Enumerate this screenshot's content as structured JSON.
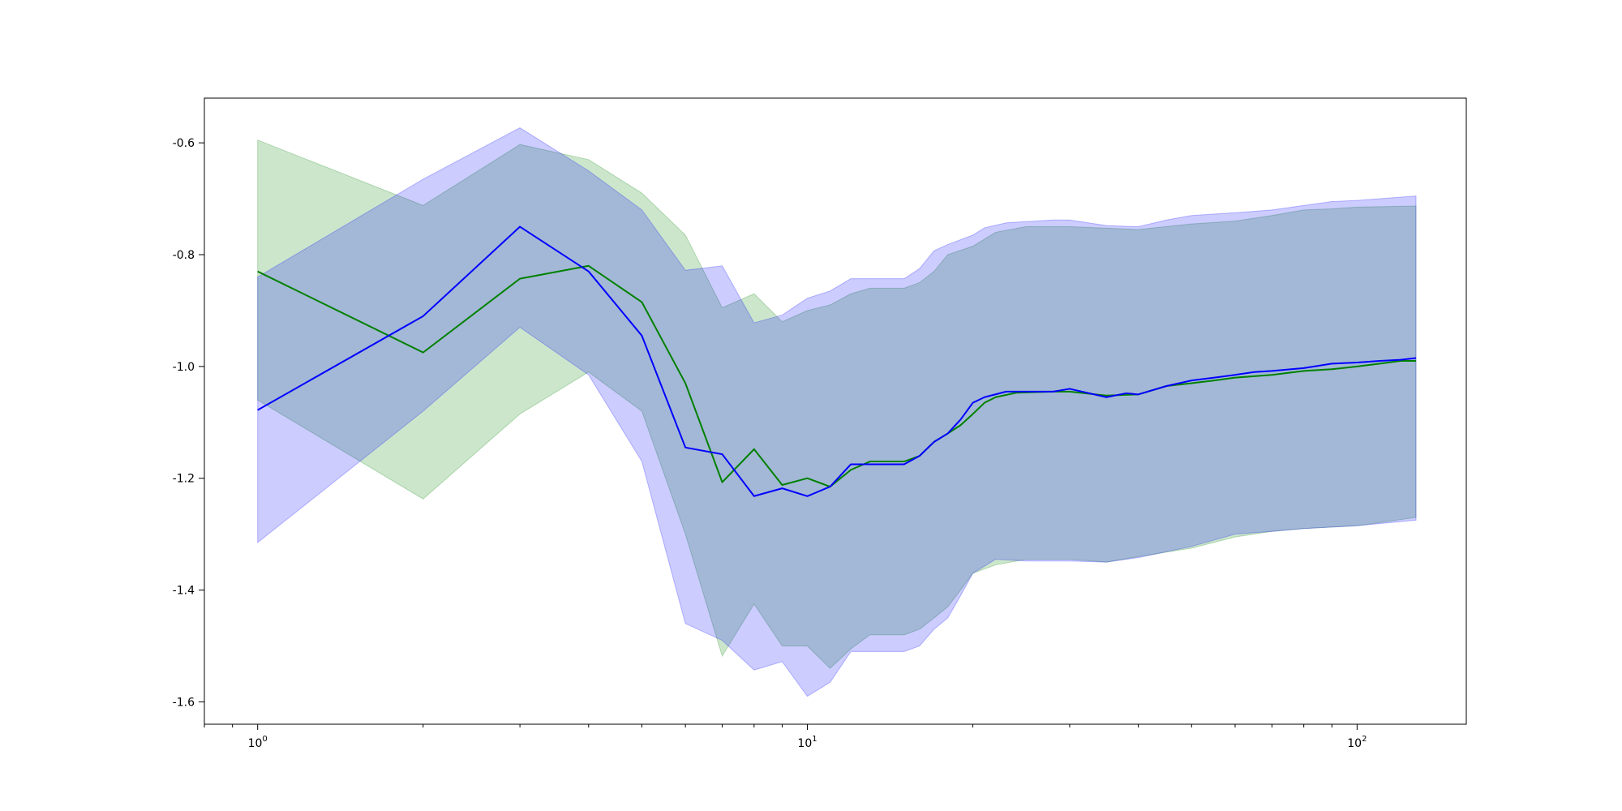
{
  "chart_data": {
    "type": "line",
    "title": "",
    "xlabel": "",
    "ylabel": "",
    "x_scale": "log",
    "xlim": [
      0.8,
      158
    ],
    "ylim": [
      -1.64,
      -0.52
    ],
    "grid": false,
    "x_major_ticks": [
      {
        "value": 1,
        "base": "10",
        "exp": "0"
      },
      {
        "value": 10,
        "base": "10",
        "exp": "1"
      },
      {
        "value": 100,
        "base": "10",
        "exp": "2"
      }
    ],
    "y_ticks": [
      {
        "value": -0.6,
        "label": "-0.6"
      },
      {
        "value": -0.8,
        "label": "-0.8"
      },
      {
        "value": -1.0,
        "label": "-1.0"
      },
      {
        "value": -1.2,
        "label": "-1.2"
      },
      {
        "value": -1.4,
        "label": "-1.4"
      },
      {
        "value": -1.6,
        "label": "-1.6"
      }
    ],
    "series": [
      {
        "color": "#008000",
        "band_color": "#008000",
        "points": [
          [
            1,
            -0.83
          ],
          [
            2,
            -0.975
          ],
          [
            3,
            -0.843
          ],
          [
            4,
            -0.82
          ],
          [
            5,
            -0.885
          ],
          [
            6,
            -1.03
          ],
          [
            7,
            -1.207
          ],
          [
            8,
            -1.148
          ],
          [
            9,
            -1.212
          ],
          [
            10,
            -1.2
          ],
          [
            11,
            -1.215
          ],
          [
            12,
            -1.185
          ],
          [
            13,
            -1.17
          ],
          [
            15,
            -1.17
          ],
          [
            16,
            -1.16
          ],
          [
            17,
            -1.135
          ],
          [
            18,
            -1.12
          ],
          [
            19,
            -1.105
          ],
          [
            20,
            -1.085
          ],
          [
            21,
            -1.065
          ],
          [
            22,
            -1.055
          ],
          [
            24,
            -1.047
          ],
          [
            28,
            -1.045
          ],
          [
            30,
            -1.045
          ],
          [
            35,
            -1.052
          ],
          [
            40,
            -1.05
          ],
          [
            45,
            -1.035
          ],
          [
            50,
            -1.03
          ],
          [
            55,
            -1.025
          ],
          [
            60,
            -1.02
          ],
          [
            70,
            -1.015
          ],
          [
            80,
            -1.008
          ],
          [
            90,
            -1.005
          ],
          [
            100,
            -1.0
          ],
          [
            110,
            -0.995
          ],
          [
            120,
            -0.99
          ],
          [
            128,
            -0.99
          ]
        ],
        "upper": [
          [
            1,
            -0.595
          ],
          [
            2,
            -0.712
          ],
          [
            3,
            -0.603
          ],
          [
            4,
            -0.63
          ],
          [
            5,
            -0.69
          ],
          [
            6,
            -0.765
          ],
          [
            7,
            -0.895
          ],
          [
            8,
            -0.87
          ],
          [
            9,
            -0.92
          ],
          [
            10,
            -0.9
          ],
          [
            11,
            -0.89
          ],
          [
            12,
            -0.87
          ],
          [
            13,
            -0.86
          ],
          [
            15,
            -0.86
          ],
          [
            16,
            -0.85
          ],
          [
            17,
            -0.83
          ],
          [
            18,
            -0.8
          ],
          [
            20,
            -0.785
          ],
          [
            22,
            -0.76
          ],
          [
            25,
            -0.75
          ],
          [
            30,
            -0.75
          ],
          [
            40,
            -0.755
          ],
          [
            50,
            -0.745
          ],
          [
            60,
            -0.74
          ],
          [
            70,
            -0.73
          ],
          [
            80,
            -0.72
          ],
          [
            90,
            -0.718
          ],
          [
            100,
            -0.715
          ],
          [
            128,
            -0.713
          ]
        ],
        "lower": [
          [
            1,
            -1.06
          ],
          [
            2,
            -1.237
          ],
          [
            3,
            -1.085
          ],
          [
            4,
            -1.01
          ],
          [
            5,
            -1.08
          ],
          [
            6,
            -1.3
          ],
          [
            7,
            -1.518
          ],
          [
            8,
            -1.425
          ],
          [
            9,
            -1.5
          ],
          [
            10,
            -1.5
          ],
          [
            11,
            -1.54
          ],
          [
            12,
            -1.505
          ],
          [
            13,
            -1.48
          ],
          [
            15,
            -1.48
          ],
          [
            16,
            -1.47
          ],
          [
            17,
            -1.45
          ],
          [
            18,
            -1.43
          ],
          [
            19,
            -1.4
          ],
          [
            20,
            -1.37
          ],
          [
            22,
            -1.355
          ],
          [
            25,
            -1.345
          ],
          [
            30,
            -1.345
          ],
          [
            35,
            -1.35
          ],
          [
            40,
            -1.34
          ],
          [
            50,
            -1.325
          ],
          [
            60,
            -1.305
          ],
          [
            70,
            -1.295
          ],
          [
            80,
            -1.29
          ],
          [
            100,
            -1.285
          ],
          [
            128,
            -1.27
          ]
        ]
      },
      {
        "color": "#0000ff",
        "band_color": "#0000ff",
        "points": [
          [
            1,
            -1.078
          ],
          [
            2,
            -0.91
          ],
          [
            3,
            -0.75
          ],
          [
            4,
            -0.83
          ],
          [
            5,
            -0.945
          ],
          [
            6,
            -1.145
          ],
          [
            7,
            -1.157
          ],
          [
            8,
            -1.232
          ],
          [
            9,
            -1.218
          ],
          [
            10,
            -1.232
          ],
          [
            11,
            -1.215
          ],
          [
            12,
            -1.175
          ],
          [
            15,
            -1.175
          ],
          [
            16,
            -1.16
          ],
          [
            17,
            -1.135
          ],
          [
            18,
            -1.12
          ],
          [
            19,
            -1.095
          ],
          [
            20,
            -1.065
          ],
          [
            21,
            -1.055
          ],
          [
            23,
            -1.045
          ],
          [
            28,
            -1.045
          ],
          [
            30,
            -1.04
          ],
          [
            35,
            -1.055
          ],
          [
            38,
            -1.048
          ],
          [
            40,
            -1.05
          ],
          [
            45,
            -1.035
          ],
          [
            50,
            -1.025
          ],
          [
            55,
            -1.02
          ],
          [
            60,
            -1.015
          ],
          [
            65,
            -1.01
          ],
          [
            70,
            -1.008
          ],
          [
            80,
            -1.003
          ],
          [
            90,
            -0.995
          ],
          [
            100,
            -0.993
          ],
          [
            110,
            -0.99
          ],
          [
            120,
            -0.988
          ],
          [
            128,
            -0.985
          ]
        ],
        "upper": [
          [
            1,
            -0.84
          ],
          [
            2,
            -0.665
          ],
          [
            3,
            -0.573
          ],
          [
            4,
            -0.65
          ],
          [
            5,
            -0.72
          ],
          [
            6,
            -0.828
          ],
          [
            7,
            -0.82
          ],
          [
            8,
            -0.922
          ],
          [
            9,
            -0.908
          ],
          [
            10,
            -0.878
          ],
          [
            11,
            -0.865
          ],
          [
            12,
            -0.843
          ],
          [
            15,
            -0.843
          ],
          [
            16,
            -0.825
          ],
          [
            17,
            -0.793
          ],
          [
            18,
            -0.782
          ],
          [
            20,
            -0.765
          ],
          [
            21,
            -0.752
          ],
          [
            23,
            -0.743
          ],
          [
            28,
            -0.738
          ],
          [
            30,
            -0.738
          ],
          [
            35,
            -0.748
          ],
          [
            40,
            -0.75
          ],
          [
            45,
            -0.738
          ],
          [
            50,
            -0.73
          ],
          [
            60,
            -0.725
          ],
          [
            70,
            -0.72
          ],
          [
            80,
            -0.712
          ],
          [
            90,
            -0.705
          ],
          [
            100,
            -0.703
          ],
          [
            128,
            -0.695
          ]
        ],
        "lower": [
          [
            1,
            -1.315
          ],
          [
            2,
            -1.08
          ],
          [
            3,
            -0.93
          ],
          [
            4,
            -1.015
          ],
          [
            5,
            -1.17
          ],
          [
            6,
            -1.46
          ],
          [
            7,
            -1.49
          ],
          [
            8,
            -1.543
          ],
          [
            9,
            -1.528
          ],
          [
            10,
            -1.59
          ],
          [
            11,
            -1.565
          ],
          [
            12,
            -1.51
          ],
          [
            15,
            -1.51
          ],
          [
            16,
            -1.5
          ],
          [
            17,
            -1.47
          ],
          [
            18,
            -1.45
          ],
          [
            19,
            -1.41
          ],
          [
            20,
            -1.37
          ],
          [
            22,
            -1.345
          ],
          [
            25,
            -1.348
          ],
          [
            30,
            -1.348
          ],
          [
            35,
            -1.35
          ],
          [
            40,
            -1.342
          ],
          [
            50,
            -1.322
          ],
          [
            60,
            -1.3
          ],
          [
            70,
            -1.295
          ],
          [
            80,
            -1.29
          ],
          [
            100,
            -1.285
          ],
          [
            128,
            -1.275
          ]
        ]
      }
    ]
  }
}
